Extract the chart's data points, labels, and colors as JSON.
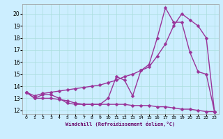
{
  "xlabel": "Windchill (Refroidissement éolien,°C)",
  "background_color": "#cceeff",
  "grid_color": "#aadddd",
  "line_color": "#993399",
  "xmin": -0.5,
  "xmax": 23.5,
  "ymin": 11.7,
  "ymax": 20.8,
  "yticks": [
    12,
    13,
    14,
    15,
    16,
    17,
    18,
    19,
    20
  ],
  "xticks": [
    0,
    1,
    2,
    3,
    4,
    5,
    6,
    7,
    8,
    9,
    10,
    11,
    12,
    13,
    14,
    15,
    16,
    17,
    18,
    19,
    20,
    21,
    22,
    23
  ],
  "line1_x": [
    0,
    1,
    2,
    3,
    4,
    5,
    6,
    7,
    8,
    9,
    10,
    11,
    12,
    13,
    14,
    15,
    16,
    17,
    18,
    19,
    20,
    21,
    22,
    23
  ],
  "line1_y": [
    13.5,
    13.0,
    13.3,
    13.3,
    13.0,
    12.6,
    12.5,
    12.5,
    12.5,
    12.5,
    13.0,
    14.8,
    14.5,
    13.2,
    15.3,
    15.8,
    18.0,
    20.5,
    19.3,
    19.3,
    16.8,
    15.2,
    15.0,
    11.9
  ],
  "line2_x": [
    0,
    1,
    2,
    3,
    4,
    5,
    6,
    7,
    8,
    9,
    10,
    11,
    12,
    13,
    14,
    15,
    16,
    17,
    18,
    19,
    20,
    21,
    22,
    23
  ],
  "line2_y": [
    13.5,
    13.2,
    13.4,
    13.5,
    13.6,
    13.7,
    13.8,
    13.9,
    14.0,
    14.1,
    14.3,
    14.5,
    14.8,
    15.0,
    15.3,
    15.6,
    16.5,
    17.5,
    19.0,
    20.0,
    19.5,
    19.0,
    18.0,
    11.9
  ],
  "line3_x": [
    0,
    1,
    2,
    3,
    4,
    5,
    6,
    7,
    8,
    9,
    10,
    11,
    12,
    13,
    14,
    15,
    16,
    17,
    18,
    19,
    20,
    21,
    22,
    23
  ],
  "line3_y": [
    13.5,
    13.0,
    13.0,
    13.0,
    12.9,
    12.8,
    12.6,
    12.5,
    12.5,
    12.5,
    12.5,
    12.5,
    12.5,
    12.4,
    12.4,
    12.4,
    12.3,
    12.3,
    12.2,
    12.1,
    12.1,
    12.0,
    11.9,
    11.9
  ]
}
